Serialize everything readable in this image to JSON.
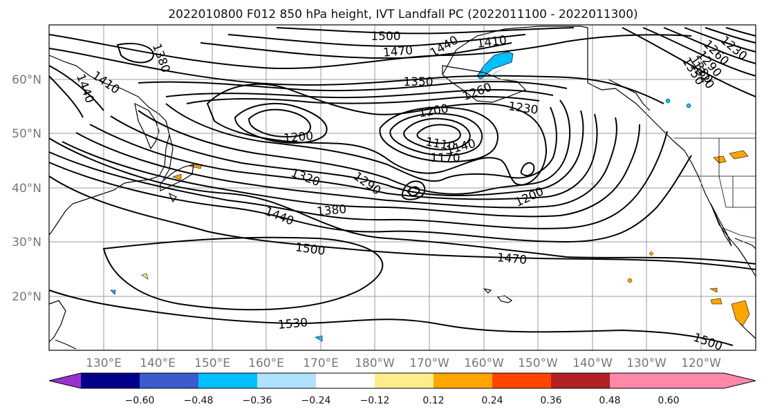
{
  "title": "2022010800 F012 850 hPa height, IVT Landfall PC (2022011100 - 2022011300)",
  "lat_ticks": [
    "60°N",
    "50°N",
    "40°N",
    "30°N",
    "20°N"
  ],
  "lon_ticks": [
    "130°E",
    "140°E",
    "150°E",
    "160°E",
    "170°E",
    "180°W",
    "170°W",
    "160°W",
    "150°W",
    "140°W",
    "130°W",
    "120°W"
  ],
  "contour_labels": [
    "1500",
    "1470",
    "1440",
    "1410",
    "1380",
    "1410",
    "1440",
    "1380",
    "1350",
    "1260",
    "1230",
    "1200",
    "1200",
    "1110",
    "1140",
    "1170",
    "1320",
    "1290",
    "1380",
    "1440",
    "1200",
    "1500",
    "1470",
    "1530",
    "1500",
    "1230",
    "1260",
    "1290",
    "1320",
    "1350"
  ],
  "colorbar": {
    "ticks": [
      "−0.60",
      "−0.48",
      "−0.36",
      "−0.24",
      "−0.12",
      "0.12",
      "0.24",
      "0.36",
      "0.48",
      "0.60"
    ],
    "colors": [
      "#9932cc",
      "#00008b",
      "#3a5bcc",
      "#00bfff",
      "#b0e2ff",
      "#ffffff",
      "#ffec8b",
      "#ffa500",
      "#ff4500",
      "#b22222",
      "#ff88aa"
    ]
  }
}
